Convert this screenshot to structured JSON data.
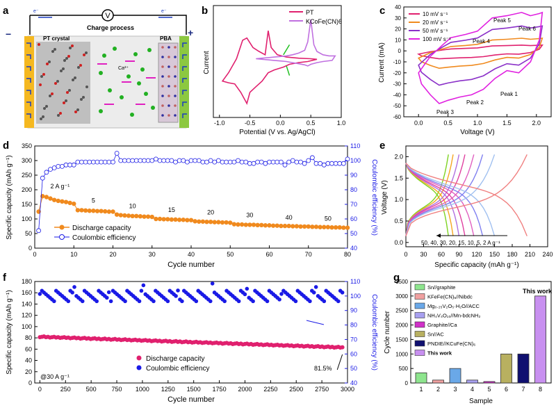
{
  "panels": {
    "a": {
      "letter": "a",
      "header": "Charge process",
      "voltmeter": "V",
      "left_label": "PT crystal",
      "right_label": "PBA",
      "ion": "Ca²⁺",
      "electron": "e⁻",
      "minus": "−",
      "plus": "+"
    },
    "b": {
      "letter": "b"
    },
    "c": {
      "letter": "c"
    },
    "d": {
      "letter": "d"
    },
    "e": {
      "letter": "e"
    },
    "f": {
      "letter": "f"
    },
    "g": {
      "letter": "g"
    }
  },
  "colors": {
    "pt": "#e0206e",
    "kcofe": "#c070e0",
    "orange": "#f08a1e",
    "blue": "#1a1ae6",
    "bar_colors": [
      "#8ee58e",
      "#f0a0a0",
      "#6aa8e8",
      "#a8a0f0",
      "#d030c8",
      "#b8b060",
      "#101070",
      "#c890f0"
    ]
  },
  "chart_data": [
    {
      "panel": "b",
      "type": "line",
      "xlabel": "Potential  (V vs. Ag/AgCl)",
      "ylabel": "Current",
      "xlim": [
        -1.1,
        1.0
      ],
      "x_ticks": [
        "-1.0",
        "-0.5",
        "0.0",
        "0.5",
        "1.0"
      ],
      "series": [
        {
          "name": "PT",
          "x": [
            -0.95,
            -0.85,
            -0.72,
            -0.62,
            -0.55,
            -0.45,
            -0.35,
            -0.25,
            -0.2,
            -0.15,
            -0.05,
            0.1,
            0.3,
            0.5,
            0.6,
            0.45,
            0.3,
            0.15,
            0.05,
            -0.1,
            -0.2,
            -0.3,
            -0.4,
            -0.5,
            -0.55,
            -0.65,
            -0.75,
            -0.85,
            -0.95
          ],
          "y": [
            -0.35,
            -0.2,
            0.05,
            0.38,
            0.42,
            0.25,
            0.18,
            0.12,
            0.55,
            0.25,
            0.12,
            0.08,
            0.06,
            0.05,
            0.04,
            0.0,
            -0.02,
            -0.05,
            -0.1,
            -0.15,
            -0.2,
            -0.35,
            -0.45,
            -0.55,
            -0.75,
            -0.55,
            -0.4,
            -0.38,
            -0.35
          ]
        },
        {
          "name": "KCoFe(CN)6",
          "x": [
            -0.4,
            -0.3,
            -0.2,
            -0.1,
            0.0,
            0.1,
            0.2,
            0.3,
            0.4,
            0.45,
            0.5,
            0.55,
            0.6,
            0.7,
            0.8,
            0.9,
            0.85,
            0.7,
            0.6,
            0.5,
            0.45,
            0.4,
            0.3,
            0.2,
            0.1,
            0.0,
            -0.1,
            -0.2,
            -0.3,
            -0.4
          ],
          "y": [
            0.05,
            0.06,
            0.07,
            0.08,
            0.09,
            0.1,
            0.12,
            0.15,
            0.2,
            0.35,
            0.75,
            0.3,
            0.18,
            0.12,
            0.1,
            0.1,
            0.02,
            0.0,
            -0.02,
            -0.05,
            -0.08,
            -0.06,
            -0.04,
            -0.02,
            0.0,
            0.01,
            0.02,
            0.03,
            0.04,
            0.05
          ]
        }
      ]
    },
    {
      "panel": "c",
      "type": "line",
      "xlabel": "Voltage (V)",
      "ylabel": "Current (mA)",
      "xlim": [
        -0.25,
        2.25
      ],
      "ylim": [
        -60,
        40
      ],
      "x_ticks": [
        0.0,
        0.5,
        1.0,
        1.5,
        2.0
      ],
      "y_ticks": [
        -60,
        -50,
        -40,
        -30,
        -20,
        -10,
        0,
        10,
        20,
        30,
        40
      ],
      "series": [
        {
          "name": "10 mV s⁻¹",
          "scale": 0.15,
          "color": "#e0206e"
        },
        {
          "name": "20 mV s⁻¹",
          "scale": 0.33,
          "color": "#f08a1e"
        },
        {
          "name": "50 mV s⁻¹",
          "scale": 0.65,
          "color": "#8a30c8"
        },
        {
          "name": "100 mV s⁻¹",
          "scale": 1.0,
          "color": "#e020e0"
        }
      ],
      "base_curve": {
        "x_up": [
          0.0,
          0.2,
          0.4,
          0.55,
          0.8,
          1.0,
          1.25,
          1.5,
          1.75,
          1.9,
          2.05,
          2.1
        ],
        "y_up": [
          -20,
          -5,
          5,
          12,
          15,
          18,
          30,
          32,
          35,
          32,
          34,
          35
        ],
        "x_down": [
          2.1,
          2.05,
          1.9,
          1.7,
          1.5,
          1.3,
          1.1,
          0.9,
          0.7,
          0.5,
          0.35,
          0.2,
          0.05,
          0.0
        ],
        "y_down": [
          35,
          10,
          -10,
          -20,
          -18,
          -25,
          -35,
          -40,
          -42,
          -45,
          -48,
          -40,
          -30,
          -20
        ]
      },
      "annotations": [
        "Peak 1",
        "Peak 2",
        "Peak 3",
        "Peak 4",
        "Peak 5",
        "Peak 6"
      ]
    },
    {
      "panel": "d",
      "type": "scatter",
      "xlabel": "Cycle number",
      "ylabel": "Specific capacity (mAh g⁻¹)",
      "y2label": "Coulombic efficiency (%)",
      "xlim": [
        0,
        80
      ],
      "ylim": [
        0,
        350
      ],
      "y2lim": [
        40,
        110
      ],
      "x_ticks": [
        0,
        10,
        20,
        30,
        40,
        50,
        60,
        70,
        80
      ],
      "y_ticks": [
        0,
        50,
        100,
        150,
        200,
        250,
        300,
        350
      ],
      "y2_ticks": [
        40,
        50,
        60,
        70,
        80,
        90,
        100,
        110
      ],
      "rate_labels": [
        "2 A g⁻¹",
        "5",
        "10",
        "15",
        "20",
        "30",
        "40",
        "50"
      ],
      "series": [
        {
          "name": "Discharge capacity",
          "x": [
            1,
            2,
            3,
            4,
            5,
            6,
            7,
            8,
            9,
            10,
            11,
            12,
            13,
            14,
            15,
            16,
            17,
            18,
            19,
            20,
            21,
            22,
            23,
            24,
            25,
            26,
            27,
            28,
            29,
            30,
            31,
            32,
            33,
            34,
            35,
            36,
            37,
            38,
            39,
            40,
            41,
            42,
            43,
            44,
            45,
            46,
            47,
            48,
            49,
            50,
            51,
            52,
            53,
            54,
            55,
            56,
            57,
            58,
            59,
            60,
            61,
            62,
            63,
            64,
            65,
            66,
            67,
            68,
            69,
            70,
            71,
            72,
            73,
            74,
            75,
            76,
            77,
            78,
            79,
            80
          ],
          "y": [
            125,
            178,
            175,
            170,
            165,
            162,
            160,
            158,
            155,
            152,
            130,
            130,
            129,
            128,
            128,
            127,
            127,
            126,
            125,
            125,
            115,
            113,
            112,
            111,
            110,
            110,
            109,
            108,
            108,
            107,
            100,
            100,
            99,
            99,
            98,
            98,
            97,
            97,
            96,
            96,
            92,
            91,
            91,
            90,
            90,
            89,
            89,
            88,
            88,
            87,
            82,
            81,
            81,
            80,
            80,
            80,
            79,
            79,
            78,
            78,
            77,
            77,
            76,
            76,
            76,
            75,
            75,
            74,
            74,
            74,
            73,
            73,
            72,
            72,
            72,
            71,
            71,
            71,
            70,
            70
          ]
        },
        {
          "name": "Coulombic efficiency",
          "x": [
            1,
            2,
            3,
            4,
            5,
            6,
            7,
            8,
            9,
            10,
            11,
            12,
            13,
            14,
            15,
            16,
            17,
            18,
            19,
            20,
            21,
            22,
            23,
            24,
            25,
            26,
            27,
            28,
            29,
            30,
            31,
            32,
            33,
            34,
            35,
            36,
            37,
            38,
            39,
            40,
            41,
            42,
            43,
            44,
            45,
            46,
            47,
            48,
            49,
            50,
            51,
            52,
            53,
            54,
            55,
            56,
            57,
            58,
            59,
            60,
            61,
            62,
            63,
            64,
            65,
            66,
            67,
            68,
            69,
            70,
            71,
            72,
            73,
            74,
            75,
            76,
            77,
            78,
            79,
            80
          ],
          "y": [
            52,
            88,
            92,
            94,
            95,
            96,
            96,
            97,
            97,
            97,
            99,
            99,
            99,
            99,
            99,
            99,
            99,
            99,
            99,
            99,
            105,
            100,
            100,
            100,
            100,
            100,
            100,
            100,
            100,
            100,
            101,
            100,
            100,
            100,
            100,
            99,
            100,
            100,
            99,
            100,
            100,
            100,
            99,
            99,
            100,
            99,
            100,
            99,
            99,
            99,
            99,
            100,
            99,
            99,
            98,
            98,
            99,
            99,
            98,
            99,
            99,
            99,
            99,
            97,
            99,
            100,
            99,
            99,
            98,
            100,
            102,
            98,
            98,
            97,
            98,
            98,
            98,
            98,
            98,
            101
          ]
        }
      ]
    },
    {
      "panel": "e",
      "type": "line",
      "xlabel": "Specific capacity (mAh g⁻¹)",
      "ylabel": "Voltage (V)",
      "xlim": [
        0,
        240
      ],
      "ylim": [
        -0.1,
        2.25
      ],
      "x_ticks": [
        0,
        30,
        60,
        90,
        120,
        150,
        180,
        210,
        240
      ],
      "y_ticks": [
        0.0,
        0.5,
        1.0,
        1.5,
        2.0
      ],
      "annotation": "50, 40, 30, 20, 15, 10, 5, 2 A g⁻¹",
      "series": [
        {
          "name": "50",
          "capacity": 72,
          "color": "#7ed321"
        },
        {
          "name": "40",
          "capacity": 80,
          "color": "#f5a623"
        },
        {
          "name": "30",
          "capacity": 90,
          "color": "#b070e0"
        },
        {
          "name": "20",
          "capacity": 100,
          "color": "#e040a0"
        },
        {
          "name": "15",
          "capacity": 115,
          "color": "#e060c0"
        },
        {
          "name": "10",
          "capacity": 130,
          "color": "#8080f0"
        },
        {
          "name": "5",
          "capacity": 150,
          "color": "#a0c0f0"
        },
        {
          "name": "2",
          "capacity": 205,
          "color": "#f08080"
        }
      ]
    },
    {
      "panel": "f",
      "type": "scatter",
      "xlabel": "Cycle number",
      "ylabel": "Specific capacity (mAh g⁻¹)",
      "y2label": "Coulombic efficiency (%)",
      "xlim": [
        -50,
        3000
      ],
      "ylim": [
        0,
        180
      ],
      "y2lim": [
        40,
        110
      ],
      "x_ticks": [
        0,
        250,
        500,
        750,
        1000,
        1250,
        1500,
        1750,
        2000,
        2250,
        2500,
        2750,
        3000
      ],
      "y_ticks": [
        0,
        20,
        40,
        60,
        80,
        100,
        120,
        140,
        160,
        180
      ],
      "y2_ticks": [
        40,
        50,
        60,
        70,
        80,
        90,
        100,
        110
      ],
      "annotations": [
        "@30 A g⁻¹",
        "81.5%"
      ],
      "series": [
        {
          "name": "Discharge capacity",
          "start": 82,
          "end": 63,
          "n": 150
        },
        {
          "name": "Coulombic efficiency",
          "mean": 100,
          "n": 150
        }
      ]
    },
    {
      "panel": "g",
      "type": "bar",
      "xlabel": "Sample",
      "ylabel": "Cycle number",
      "ylim": [
        0,
        3500
      ],
      "y_ticks": [
        0,
        500,
        1000,
        1500,
        2000,
        2500,
        3000,
        3500
      ],
      "categories": [
        "1",
        "2",
        "3",
        "4",
        "5",
        "6",
        "7",
        "8"
      ],
      "values": [
        350,
        100,
        500,
        100,
        50,
        1000,
        1000,
        3000
      ],
      "legend": [
        "Sn//graphite",
        "KFeFe(CN)₆//Nibdc",
        "Mg₀.₂₅V₂O₅·H₂O//ACC",
        "NH₄V₄O₁₀//Mn-bdcNH₂",
        "Graphite//Ca",
        "Sn//AC",
        "PNDIE//KCuFe(CN)₆",
        "This work"
      ],
      "annotation": "This work"
    }
  ]
}
